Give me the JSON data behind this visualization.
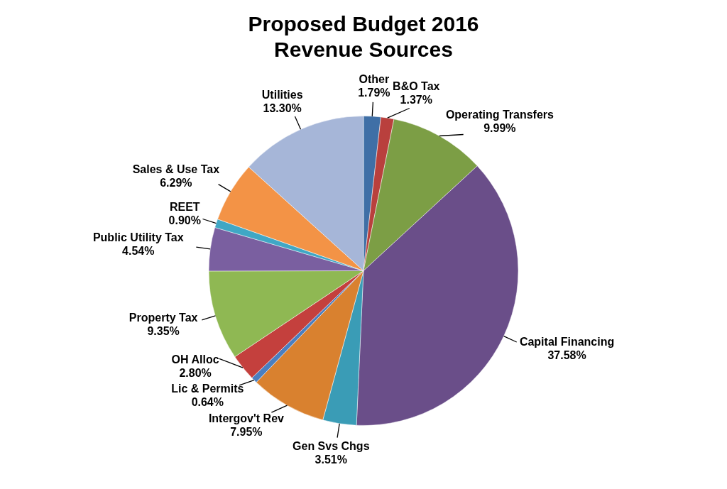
{
  "chart_data": {
    "type": "pie",
    "title": "Proposed Budget 2016",
    "subtitle": "Revenue Sources",
    "categories": [
      "Other",
      "B&O Tax",
      "Operating Transfers",
      "Capital Financing",
      "Gen Svs Chgs",
      "Intergov't Rev",
      "Lic & Permits",
      "OH Alloc",
      "Property Tax",
      "Public Utility Tax",
      "REET",
      "Sales & Use Tax",
      "Utilities"
    ],
    "values": [
      1.79,
      1.37,
      9.99,
      37.58,
      3.51,
      7.95,
      0.64,
      2.8,
      9.35,
      4.54,
      0.9,
      6.29,
      13.3
    ],
    "value_labels": [
      "1.79%",
      "1.37%",
      "9.99%",
      "37.58%",
      "3.51%",
      "7.95%",
      "0.64%",
      "2.80%",
      "9.35%",
      "4.54%",
      "0.90%",
      "6.29%",
      "13.30%"
    ],
    "colors": [
      "#3f6fa6",
      "#b9403d",
      "#7c9e45",
      "#6a4e89",
      "#3a9cb6",
      "#d9812f",
      "#4a7fc0",
      "#c4403d",
      "#8fb853",
      "#7a5fa0",
      "#40a7c5",
      "#f39346",
      "#a6b6d8"
    ],
    "legend": false
  }
}
